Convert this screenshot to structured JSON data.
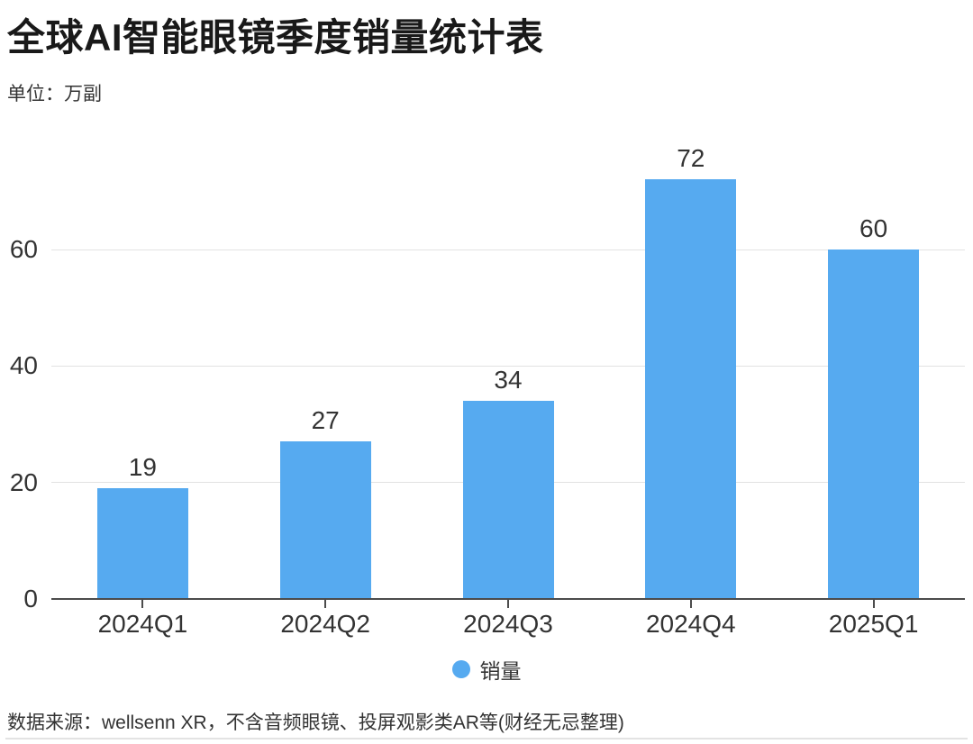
{
  "header": {
    "title": "全球AI智能眼镜季度销量统计表",
    "subtitle": "单位：万副"
  },
  "chart_data": {
    "type": "bar",
    "title": "全球AI智能眼镜季度销量统计表",
    "unit_label": "单位：万副",
    "categories": [
      "2024Q1",
      "2024Q2",
      "2024Q3",
      "2024Q4",
      "2025Q1"
    ],
    "series": [
      {
        "name": "销量",
        "values": [
          19,
          27,
          34,
          72,
          60
        ]
      }
    ],
    "data_labels": [
      19,
      27,
      34,
      72,
      60
    ],
    "xlabel": "",
    "ylabel": "",
    "yticks": [
      0,
      20,
      40,
      60
    ],
    "ylim": [
      0,
      75
    ],
    "grid": true,
    "legend_position": "bottom-center"
  },
  "legend": {
    "items": [
      {
        "label": "销量",
        "color": "#56aaf0"
      }
    ]
  },
  "footer": {
    "source": "数据来源：wellsenn XR，不含音频眼镜、投屏观影类AR等(财经无忌整理)"
  },
  "colors": {
    "bar": "#56aaf0",
    "axis": "#4c4c4c",
    "grid": "#e2e2e2",
    "text": "#333333",
    "title": "#191919",
    "divider": "#e3e3e3",
    "background": "#ffffff"
  }
}
